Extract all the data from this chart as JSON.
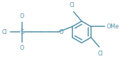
{
  "bg_color": "#ffffff",
  "line_color": "#5090a8",
  "text_color": "#5090a8",
  "line_width": 1.1,
  "font_size": 5.8,
  "figsize": [
    1.9,
    0.91
  ],
  "dpi": 100,
  "xlim": [
    0,
    190
  ],
  "ylim": [
    0,
    91
  ]
}
